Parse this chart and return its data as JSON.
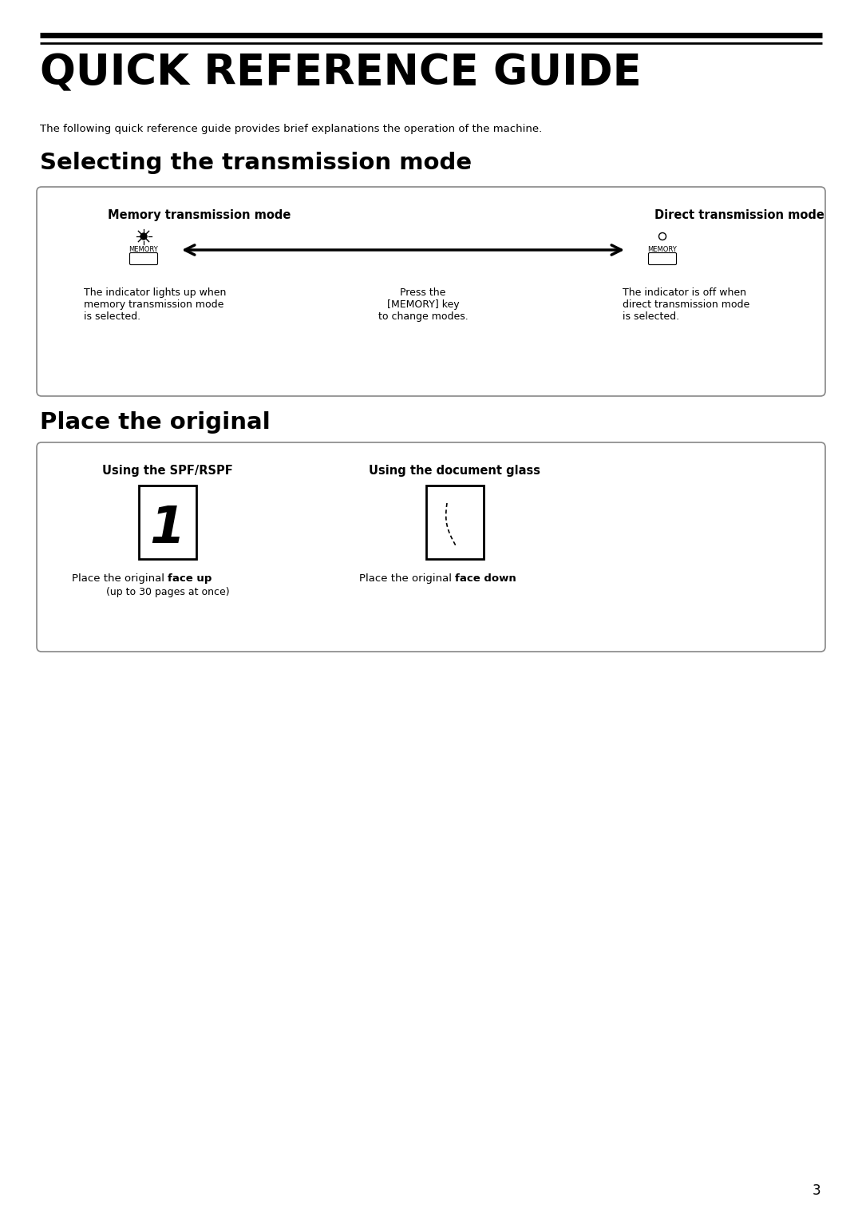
{
  "title": "QUICK REFERENCE GUIDE",
  "subtitle": "The following quick reference guide provides brief explanations the operation of the machine.",
  "section1": "Selecting the transmission mode",
  "section2": "Place the original",
  "box1": {
    "col1_title": "Memory transmission mode",
    "col2_text": [
      "Press the",
      "[MEMORY] key",
      "to change modes."
    ],
    "col3_title": "Direct transmission mode",
    "col1_desc": [
      "The indicator lights up when",
      "memory transmission mode",
      "is selected."
    ],
    "col3_desc": [
      "The indicator is off when",
      "direct transmission mode",
      "is selected."
    ]
  },
  "box2": {
    "col1_title": "Using the SPF/RSPF",
    "col2_title": "Using the document glass",
    "col1_desc1": "Place the original ",
    "col1_desc_bold": "face up",
    "col1_desc2": "(up to 30 pages at once)",
    "col2_desc1": "Place the original ",
    "col2_desc_bold": "face down"
  },
  "bg_color": "#ffffff",
  "text_color": "#000000",
  "box_border_color": "#888888",
  "page_number": "3"
}
